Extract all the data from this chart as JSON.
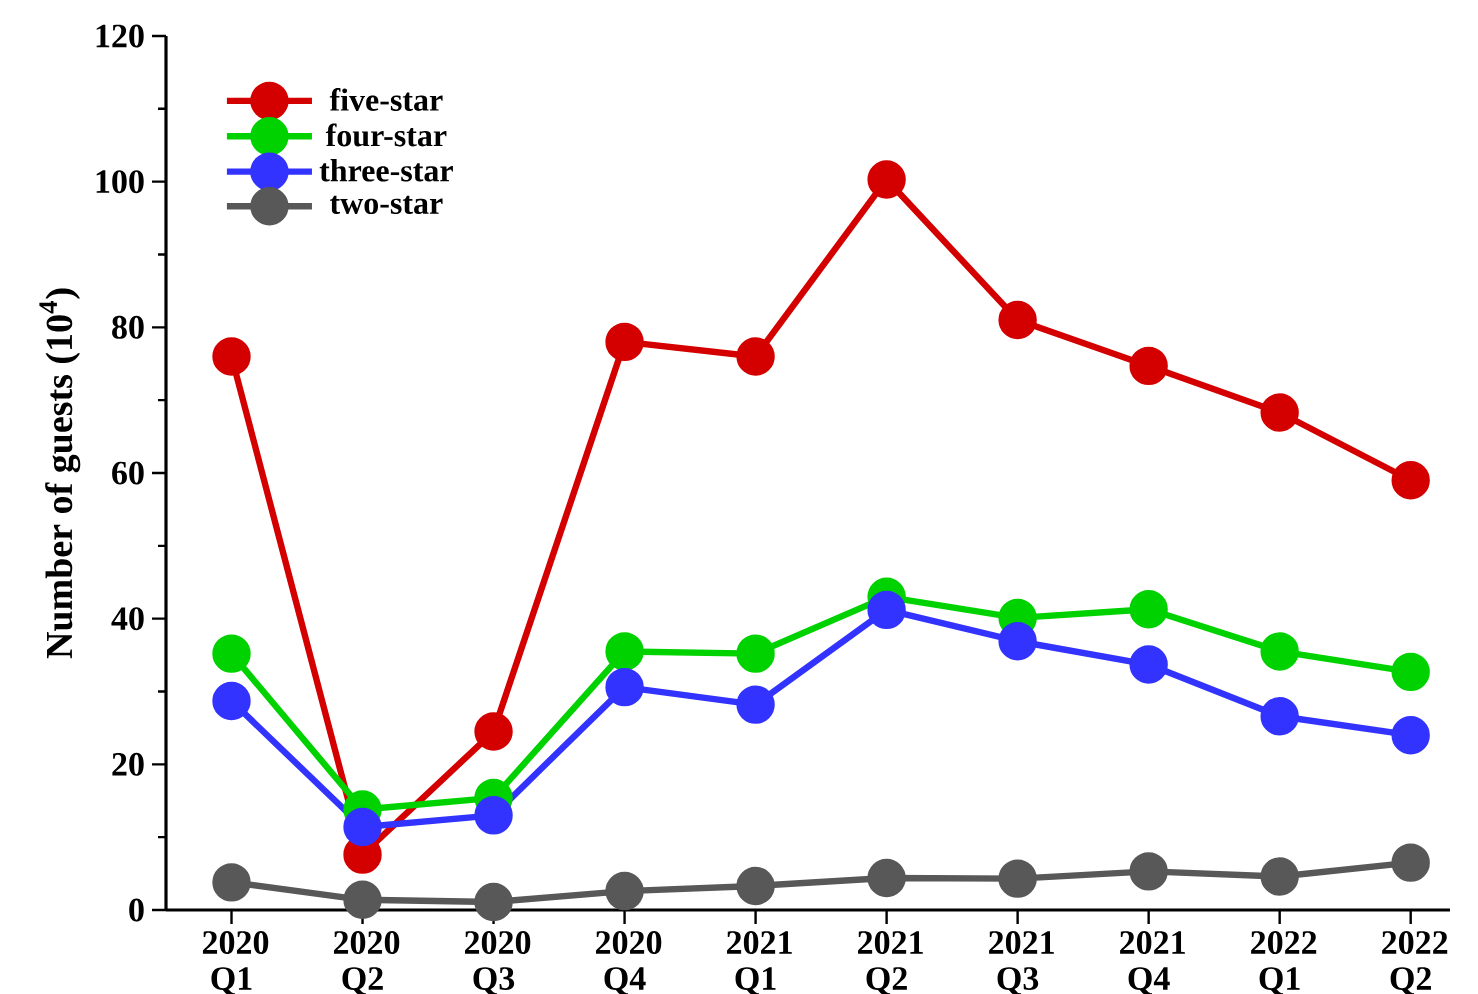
{
  "chart_data": {
    "type": "line",
    "ylabel": "Number of guests (10$^{4}$)",
    "categories": [
      "2020 Q1",
      "2020 Q2",
      "2020 Q3",
      "2020 Q4",
      "2021 Q1",
      "2021 Q2",
      "2021 Q3",
      "2021 Q4",
      "2022 Q1",
      "2022 Q2"
    ],
    "series": [
      {
        "name": "five-star",
        "color": "#d40000",
        "values": [
          76,
          7.6,
          24.5,
          78,
          76,
          100.3,
          81,
          74.7,
          68.3,
          59
        ]
      },
      {
        "name": "four-star",
        "color": "#00d200",
        "values": [
          35.2,
          13.8,
          15.4,
          35.5,
          35.2,
          43,
          40.1,
          41.3,
          35.5,
          32.7
        ]
      },
      {
        "name": "three-star",
        "color": "#3333ff",
        "values": [
          28.7,
          11.4,
          13,
          30.6,
          28.2,
          41.2,
          36.9,
          33.7,
          26.6,
          24
        ]
      },
      {
        "name": "two-star",
        "color": "#585858",
        "values": [
          3.8,
          1.4,
          1.1,
          2.6,
          3.3,
          4.4,
          4.3,
          5.3,
          4.6,
          6.5
        ]
      }
    ],
    "ylim": [
      0,
      120
    ],
    "yticks": [
      0,
      20,
      40,
      60,
      80,
      100,
      120
    ],
    "grid": false,
    "legend": "top left",
    "marker": "circle",
    "line_style": "solid"
  }
}
